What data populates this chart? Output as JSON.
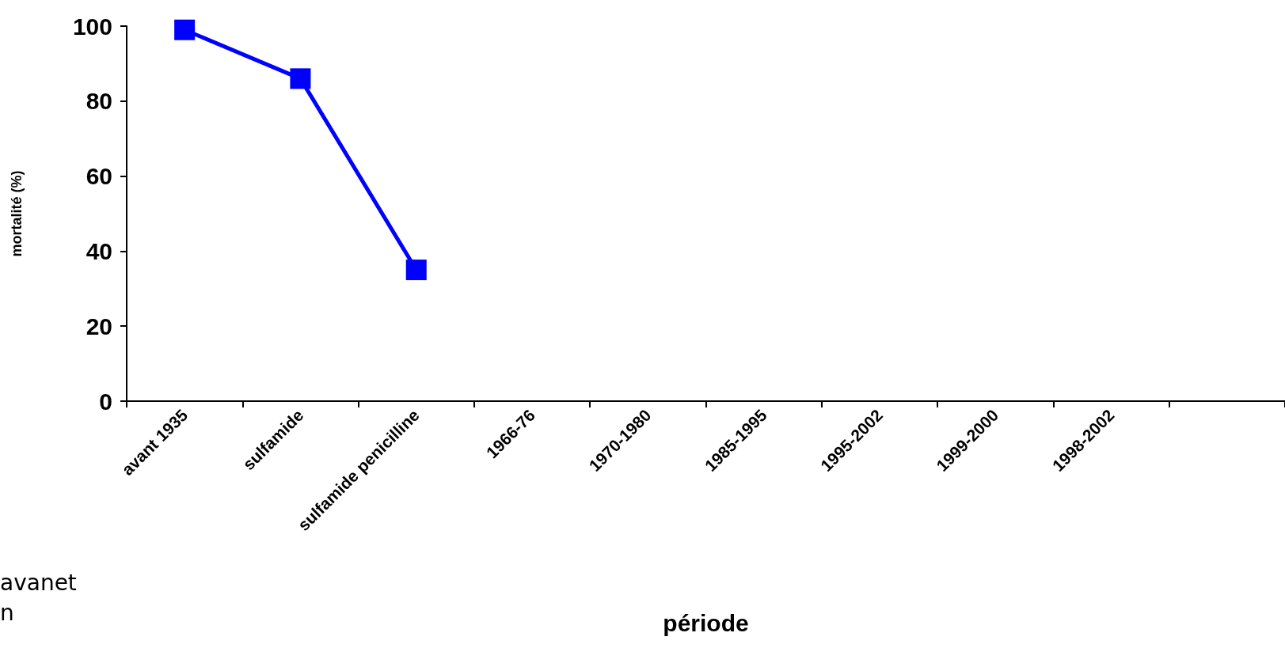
{
  "chart_data": {
    "type": "line",
    "xlabel": "période",
    "ylabel": "mortalité (%)",
    "categories": [
      "avant 1935",
      "sulfamide",
      "sulfamide penicilline",
      "1966-76",
      "1970-1980",
      "1985-1995",
      "1995-2002",
      "1999-2000",
      "1998-2002",
      null
    ],
    "series": [
      {
        "color": "#0000ff",
        "values": [
          99,
          86,
          35,
          null,
          null,
          null,
          null,
          null,
          null,
          null
        ]
      }
    ],
    "ylim": [
      0,
      100
    ],
    "yticks": [
      0,
      20,
      40,
      60,
      80,
      100
    ],
    "grid": false,
    "marker": "square",
    "line_style": "solid",
    "annotations": [
      "avanet",
      "n"
    ]
  }
}
